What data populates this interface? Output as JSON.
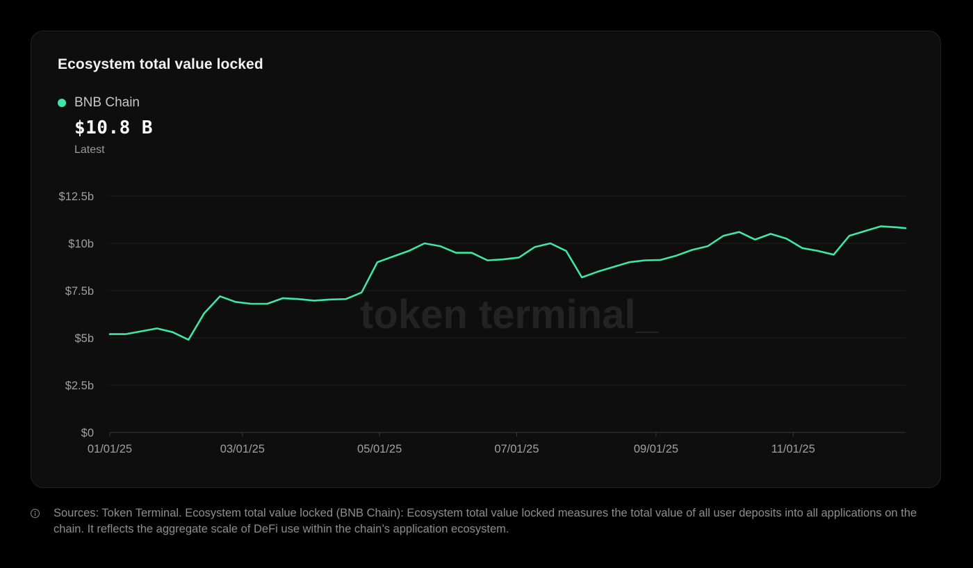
{
  "card": {
    "title": "Ecosystem total value locked",
    "legend_label": "BNB Chain",
    "legend_color": "#3ee6a8",
    "latest_value": "$10.8 B",
    "latest_label": "Latest",
    "watermark": "token terminal_"
  },
  "footer": {
    "note": "Sources: Token Terminal. Ecosystem total value locked (BNB Chain): Ecosystem total value locked measures the total value of all user deposits into all applications on the chain. It reflects the aggregate scale of DeFi use within the chain’s application ecosystem."
  },
  "chart_data": {
    "type": "line",
    "title": "Ecosystem total value locked",
    "xlabel": "",
    "ylabel": "",
    "ylim": [
      0,
      12.5
    ],
    "xlim": [
      "2025-01-01",
      "2025-12-21"
    ],
    "grid": true,
    "legend": "top-left",
    "y_ticks": [
      0,
      2.5,
      5,
      7.5,
      10,
      12.5
    ],
    "y_tick_labels": [
      "$0",
      "$2.5b",
      "$5b",
      "$7.5b",
      "$10b",
      "$12.5b"
    ],
    "x_ticks": [
      "2025-01-01",
      "2025-03-01",
      "2025-05-01",
      "2025-07-01",
      "2025-09-01",
      "2025-11-01"
    ],
    "x_tick_labels": [
      "01/01/25",
      "03/01/25",
      "05/01/25",
      "07/01/25",
      "09/01/25",
      "11/01/25"
    ],
    "series": [
      {
        "name": "BNB Chain",
        "color": "#3ee6a8",
        "x": [
          "2025-01-01",
          "2025-01-08",
          "2025-01-15",
          "2025-01-22",
          "2025-01-29",
          "2025-02-05",
          "2025-02-12",
          "2025-02-19",
          "2025-02-26",
          "2025-03-05",
          "2025-03-12",
          "2025-03-19",
          "2025-03-26",
          "2025-04-02",
          "2025-04-09",
          "2025-04-16",
          "2025-04-23",
          "2025-04-30",
          "2025-05-07",
          "2025-05-14",
          "2025-05-21",
          "2025-05-28",
          "2025-06-04",
          "2025-06-11",
          "2025-06-18",
          "2025-06-25",
          "2025-07-02",
          "2025-07-09",
          "2025-07-16",
          "2025-07-23",
          "2025-07-30",
          "2025-08-06",
          "2025-08-13",
          "2025-08-20",
          "2025-08-27",
          "2025-09-03",
          "2025-09-10",
          "2025-09-17",
          "2025-09-24",
          "2025-10-01",
          "2025-10-08",
          "2025-10-15",
          "2025-10-22",
          "2025-10-29",
          "2025-11-05",
          "2025-11-12",
          "2025-11-19",
          "2025-11-26",
          "2025-12-03",
          "2025-12-10",
          "2025-12-17",
          "2025-12-21"
        ],
        "y": [
          5.2,
          5.2,
          5.35,
          5.5,
          5.3,
          4.9,
          6.3,
          7.2,
          6.9,
          6.8,
          6.8,
          7.1,
          7.05,
          6.97,
          7.03,
          7.05,
          7.4,
          9.0,
          9.3,
          9.6,
          10.0,
          9.85,
          9.5,
          9.5,
          9.1,
          9.15,
          9.25,
          9.8,
          10.0,
          9.6,
          8.2,
          8.5,
          8.75,
          9.0,
          9.1,
          9.12,
          9.35,
          9.65,
          9.85,
          10.4,
          10.6,
          10.2,
          10.5,
          10.25,
          9.75,
          9.6,
          9.4,
          10.4,
          10.65,
          10.9,
          10.85,
          10.8
        ]
      }
    ]
  }
}
